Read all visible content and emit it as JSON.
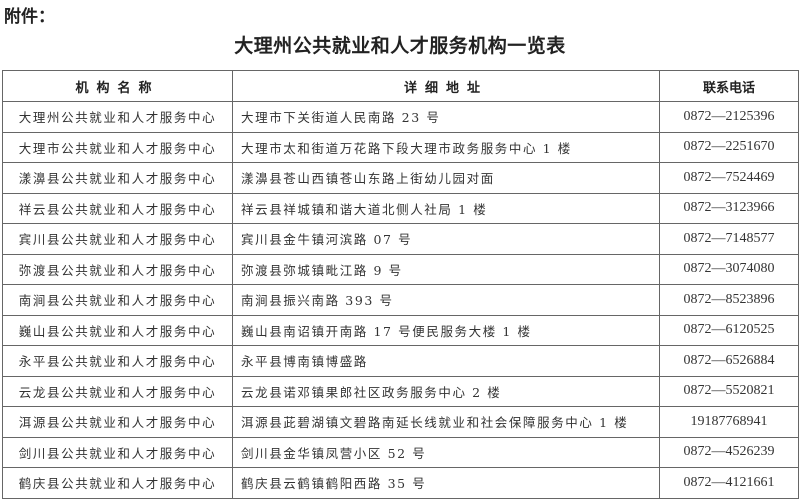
{
  "attachment_label": "附件：",
  "title": "大理州公共就业和人才服务机构一览表",
  "table": {
    "headers": [
      "机构名称",
      "详细地址",
      "联系电话"
    ],
    "rows": [
      [
        "大理州公共就业和人才服务中心",
        "大理市下关街道人民南路 23 号",
        "0872—2125396"
      ],
      [
        "大理市公共就业和人才服务中心",
        "大理市太和街道万花路下段大理市政务服务中心 1 楼",
        "0872—2251670"
      ],
      [
        "漾濞县公共就业和人才服务中心",
        "漾濞县苍山西镇苍山东路上街幼儿园对面",
        "0872—7524469"
      ],
      [
        "祥云县公共就业和人才服务中心",
        "祥云县祥城镇和谐大道北侧人社局 1 楼",
        "0872—3123966"
      ],
      [
        "宾川县公共就业和人才服务中心",
        "宾川县金牛镇河滨路 07 号",
        "0872—7148577"
      ],
      [
        "弥渡县公共就业和人才服务中心",
        "弥渡县弥城镇毗江路 9 号",
        "0872—3074080"
      ],
      [
        "南涧县公共就业和人才服务中心",
        "南涧县振兴南路 393 号",
        "0872—8523896"
      ],
      [
        "巍山县公共就业和人才服务中心",
        "巍山县南诏镇开南路 17 号便民服务大楼 1 楼",
        "0872—6120525"
      ],
      [
        "永平县公共就业和人才服务中心",
        "永平县博南镇博盛路",
        "0872—6526884"
      ],
      [
        "云龙县公共就业和人才服务中心",
        "云龙县诺邓镇果郎社区政务服务中心 2 楼",
        "0872—5520821"
      ],
      [
        "洱源县公共就业和人才服务中心",
        "洱源县茈碧湖镇文碧路南延长线就业和社会保障服务中心 1 楼",
        "19187768941"
      ],
      [
        "剑川县公共就业和人才服务中心",
        "剑川县金华镇凤营小区 52 号",
        "0872—4526239"
      ],
      [
        "鹤庆县公共就业和人才服务中心",
        "鹤庆县云鹤镇鹤阳西路 35 号",
        "0872—4121661"
      ]
    ]
  }
}
